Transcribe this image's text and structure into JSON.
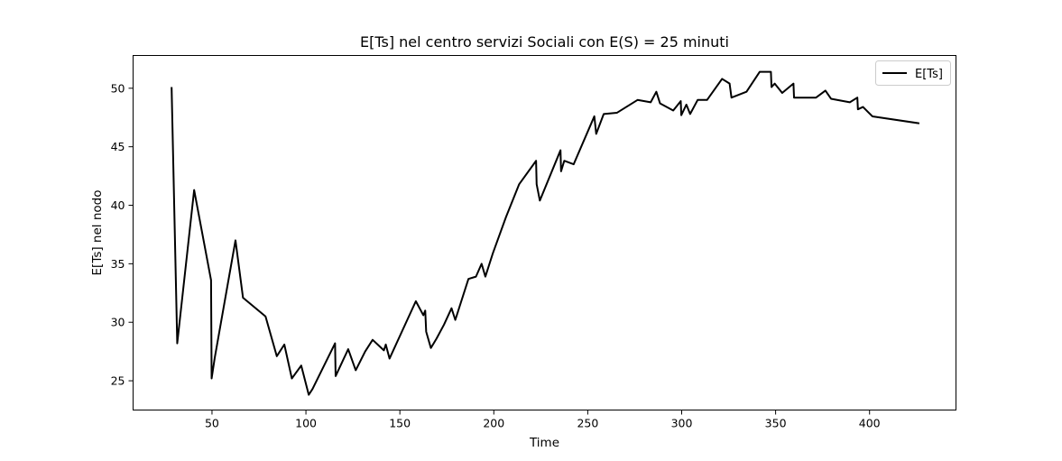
{
  "chart_data": {
    "type": "line",
    "title": "E[Ts] nel centro servizi Sociali con E(S) = 25 minuti",
    "xlabel": "Time",
    "ylabel": "E[Ts] nel nodo",
    "xlim": [
      8,
      446
    ],
    "ylim": [
      22.5,
      52.8
    ],
    "xticks": [
      50,
      100,
      150,
      200,
      250,
      300,
      350,
      400
    ],
    "yticks": [
      25,
      30,
      35,
      40,
      45,
      50
    ],
    "grid": false,
    "legend_position": "upper right",
    "series": [
      {
        "name": "E[Ts]",
        "color": "#000000",
        "x": [
          28.5,
          31.5,
          40.5,
          49.5,
          49.8,
          51.5,
          62.5,
          66.5,
          78.5,
          84.5,
          88.5,
          92.5,
          97.5,
          101.5,
          103.5,
          115.5,
          115.8,
          122.5,
          126.5,
          131.5,
          135.5,
          141.5,
          142.5,
          144.5,
          158.5,
          162.5,
          163.5,
          164.0,
          166.5,
          169.5,
          173.5,
          177.5,
          179.5,
          186.5,
          190.5,
          193.5,
          195.5,
          199.5,
          206.5,
          213.5,
          222.5,
          222.8,
          224.5,
          235.5,
          235.8,
          237.5,
          242.5,
          253.5,
          254.5,
          258.5,
          265.5,
          276.5,
          283.5,
          286.5,
          288.5,
          295.5,
          299.5,
          299.8,
          302.5,
          304.5,
          308.5,
          313.5,
          321.5,
          325.5,
          326.5,
          334.5,
          341.5,
          347.5,
          347.8,
          349.5,
          353.5,
          359.5,
          359.8,
          371.5,
          376.5,
          379.5,
          389.5,
          393.5,
          393.8,
          396.5,
          401.5,
          426.5
        ],
        "y": [
          50.1,
          28.2,
          41.3,
          33.6,
          25.2,
          27.0,
          37.0,
          32.1,
          30.5,
          27.1,
          28.1,
          25.2,
          26.3,
          23.8,
          24.3,
          28.2,
          25.4,
          27.7,
          25.9,
          27.5,
          28.5,
          27.6,
          28.1,
          26.9,
          31.8,
          30.6,
          31.0,
          29.2,
          27.8,
          28.6,
          29.8,
          31.2,
          30.2,
          33.7,
          33.9,
          35.0,
          33.9,
          35.9,
          39.0,
          41.8,
          43.8,
          41.8,
          40.4,
          44.7,
          42.9,
          43.8,
          43.5,
          47.6,
          46.1,
          47.8,
          47.9,
          49.0,
          48.8,
          49.7,
          48.7,
          48.1,
          48.9,
          47.7,
          48.6,
          47.8,
          49.0,
          49.0,
          50.8,
          50.4,
          49.2,
          49.7,
          51.4,
          51.4,
          50.1,
          50.4,
          49.6,
          50.4,
          49.2,
          49.2,
          49.8,
          49.1,
          48.8,
          49.2,
          48.2,
          48.4,
          47.6,
          47.0
        ]
      }
    ]
  }
}
